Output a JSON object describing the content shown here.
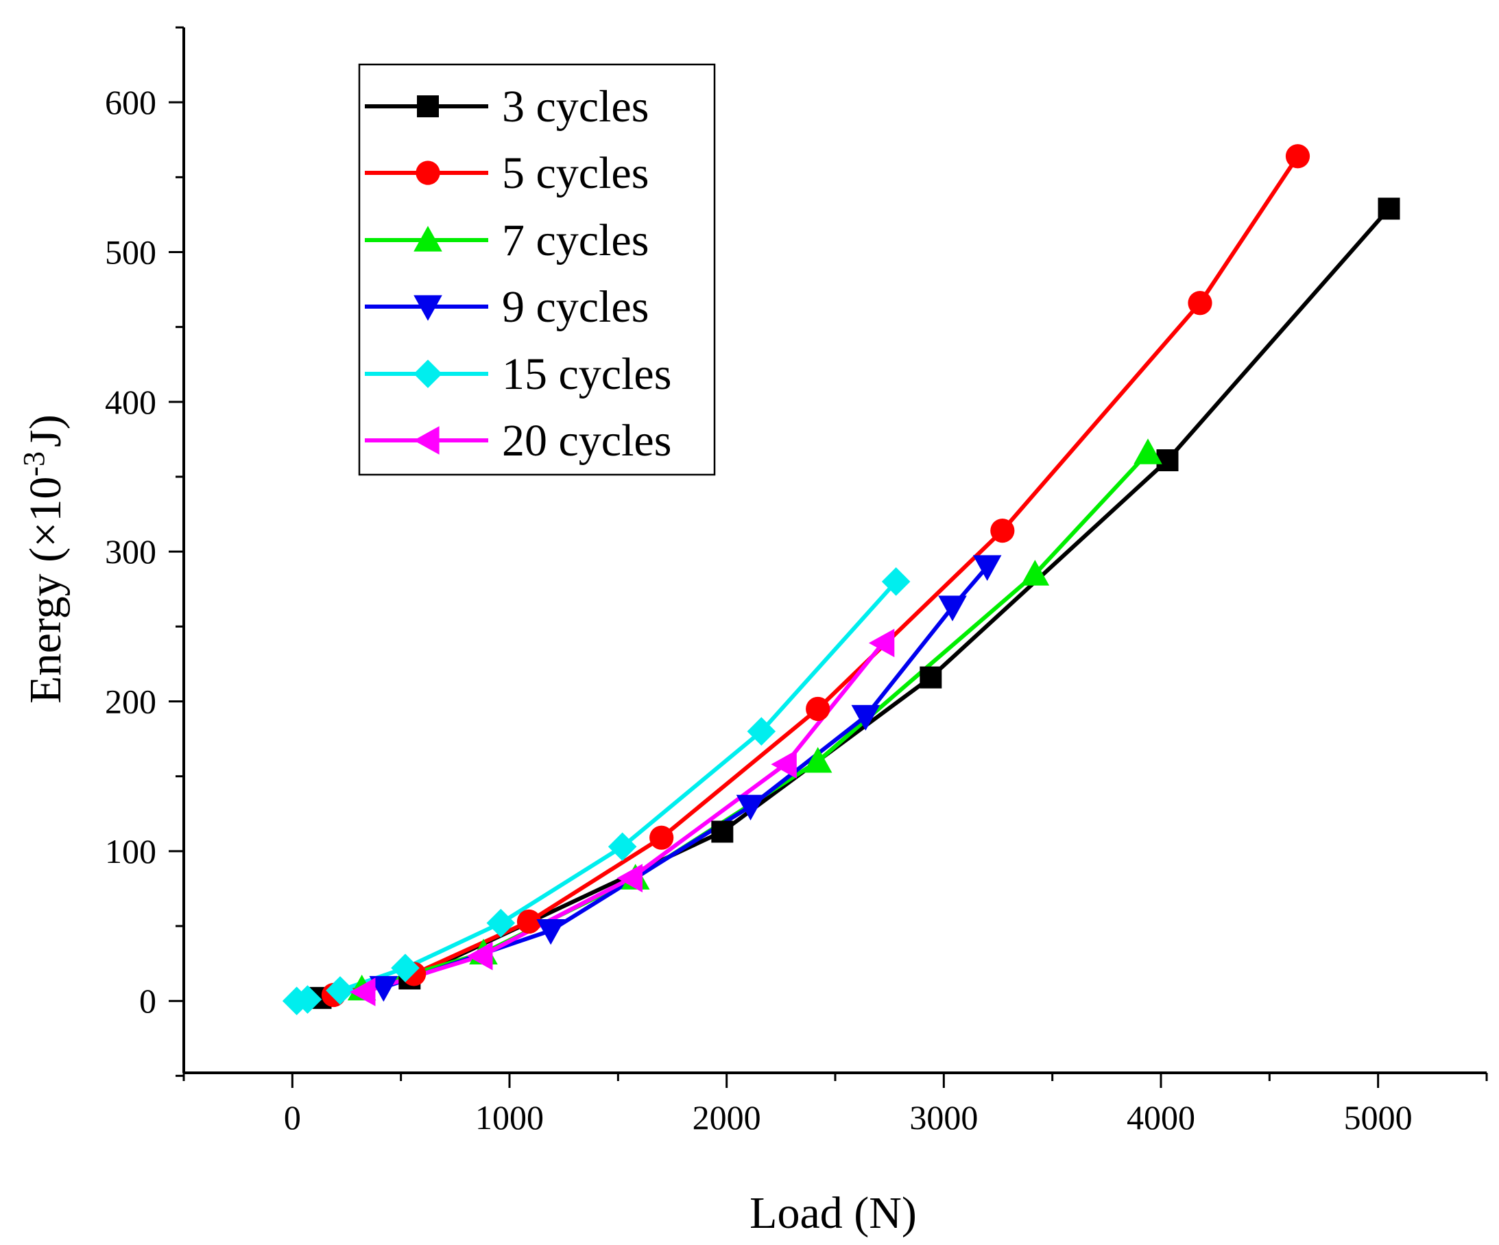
{
  "chart_data": {
    "type": "line",
    "title": "",
    "xlabel": "Load (N)",
    "ylabel_main": "Energy (×10",
    "ylabel_sup": "-3",
    "ylabel_unit": "J)",
    "xlim": [
      -500,
      5500
    ],
    "ylim": [
      -48,
      650
    ],
    "xticks": [
      0,
      1000,
      2000,
      3000,
      4000,
      5000
    ],
    "yticks": [
      0,
      100,
      200,
      300,
      400,
      500,
      600
    ],
    "xtick_labels": [
      "0",
      "1000",
      "2000",
      "3000",
      "4000",
      "5000"
    ],
    "ytick_labels": [
      "0",
      "100",
      "200",
      "300",
      "400",
      "500",
      "600"
    ],
    "grid": false,
    "legend_position": "top-left",
    "series": [
      {
        "name": "3 cycles",
        "color": "#000000",
        "marker": "square",
        "x": [
          130,
          540,
          1980,
          2940,
          4030,
          5050
        ],
        "y": [
          2,
          15,
          113,
          216,
          361,
          529
        ]
      },
      {
        "name": "5 cycles",
        "color": "#ff0000",
        "marker": "circle",
        "x": [
          190,
          560,
          1090,
          1700,
          2420,
          3270,
          4180,
          4630
        ],
        "y": [
          4,
          18,
          53,
          109,
          195,
          314,
          466,
          564
        ]
      },
      {
        "name": "7 cycles",
        "color": "#00ee00",
        "marker": "triangle-up",
        "x": [
          320,
          880,
          1580,
          2420,
          3420,
          3940
        ],
        "y": [
          8,
          32,
          82,
          160,
          285,
          366
        ]
      },
      {
        "name": "9 cycles",
        "color": "#0000ee",
        "marker": "triangle-down",
        "x": [
          420,
          1190,
          2110,
          2640,
          3040,
          3200
        ],
        "y": [
          9,
          47,
          130,
          190,
          263,
          290
        ]
      },
      {
        "name": "15 cycles",
        "color": "#00eeee",
        "marker": "diamond",
        "x": [
          20,
          70,
          220,
          520,
          960,
          1520,
          2160,
          2780
        ],
        "y": [
          0,
          1,
          7,
          22,
          52,
          103,
          180,
          280
        ]
      },
      {
        "name": "20 cycles",
        "color": "#ff00ff",
        "marker": "triangle-left",
        "x": [
          330,
          870,
          1560,
          2270,
          2720
        ],
        "y": [
          6,
          30,
          82,
          158,
          239
        ]
      }
    ]
  }
}
